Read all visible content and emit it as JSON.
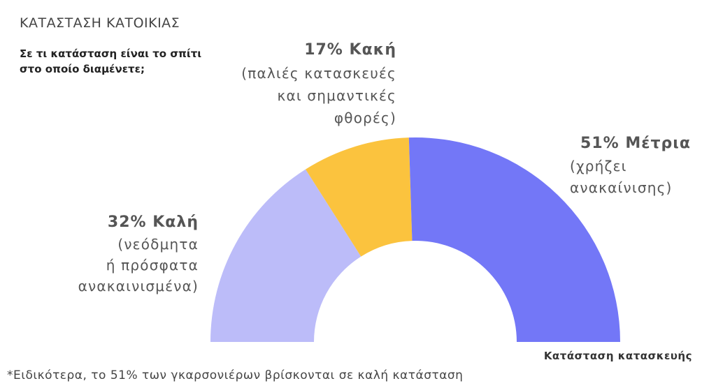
{
  "chart_data": {
    "type": "semi-donut",
    "title": "ΚΑΤΑΣΤΑΣΗ ΚΑΤΟΙΚΙΑΣ",
    "subtitle": [
      "Σε τι κατάσταση είναι το σπίτι",
      "στο οποίο διαμένετε;"
    ],
    "categories": [
      "Καλή",
      "Κακή",
      "Μέτρια"
    ],
    "values": [
      32,
      17,
      51
    ],
    "value_labels": [
      "32%",
      "17%",
      "51%"
    ],
    "descriptions": [
      [
        "(νεόδμητα",
        "ή πρόσφατα",
        "ανακαινισμένα)"
      ],
      [
        "(παλιές κατασκευές",
        "και σημαντικές",
        "φθορές)"
      ],
      [
        "(χρήζει",
        "ανακαίνισης)"
      ]
    ],
    "colors": [
      "#bcbcf9",
      "#fbc33e",
      "#7377f7"
    ],
    "caption": "Κατάσταση κατασκευής",
    "footnote": "*Ειδικότερα, το 51% των γκαρσονιέρων βρίσκονται σε καλή κατάσταση"
  }
}
